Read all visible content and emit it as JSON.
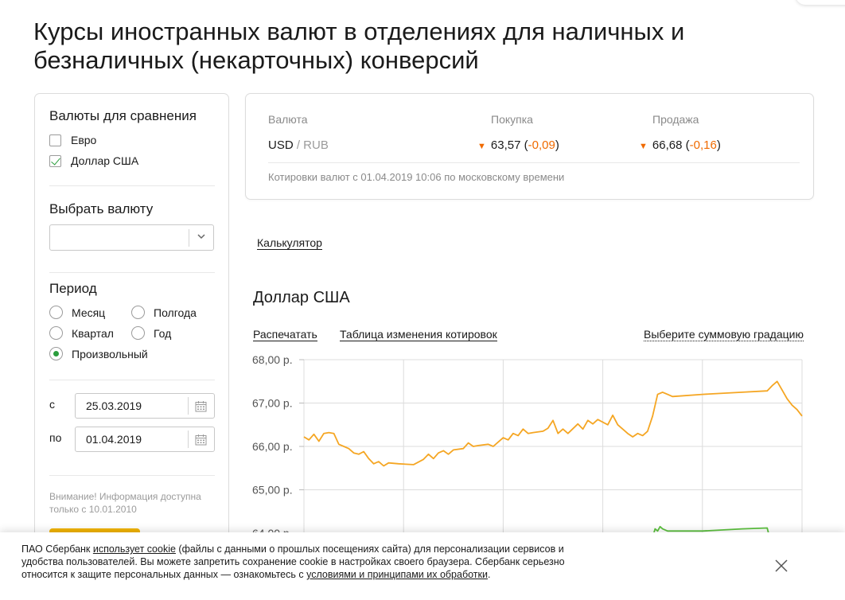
{
  "page_title": "Курсы иностранных валют в отделениях для наличных и безналичных (некарточных) конверсий",
  "sidebar": {
    "compare_title": "Валюты для сравнения",
    "compare_items": [
      {
        "label": "Евро",
        "checked": false
      },
      {
        "label": "Доллар США",
        "checked": true
      }
    ],
    "select_title": "Выбрать валюту",
    "select_value": "",
    "period_title": "Период",
    "period_options": [
      {
        "label": "Месяц",
        "selected": false
      },
      {
        "label": "Полгода",
        "selected": false
      },
      {
        "label": "Квартал",
        "selected": false
      },
      {
        "label": "Год",
        "selected": false
      },
      {
        "label": "Произвольный",
        "selected": true
      }
    ],
    "from_label": "с",
    "from_date": "25.03.2019",
    "to_label": "по",
    "to_date": "01.04.2019",
    "note": "Внимание! Информация доступна только с 10.01.2010"
  },
  "rates": {
    "col_currency": "Валюта",
    "col_buy": "Покупка",
    "col_sell": "Продажа",
    "currency": "USD",
    "base": "/ RUB",
    "buy_value": "63,57",
    "buy_change": "-0,09",
    "sell_value": "66,68",
    "sell_change": "-0,16",
    "note": "Котировки валют с 01.04.2019 10:06 по московскому времени",
    "down_color": "#f06a00"
  },
  "links": {
    "calculator": "Калькулятор",
    "print": "Распечатать",
    "table": "Таблица изменения котировок",
    "gradation": "Выберите суммовую градацию"
  },
  "chart_title": "Доллар США",
  "chart_data": {
    "type": "line",
    "title": "Доллар США",
    "ylim": [
      63.8,
      68.0
    ],
    "y_ticks": [
      "68,00 р.",
      "67,00 р.",
      "66,00 р.",
      "65,00 р.",
      "64,00 р."
    ],
    "y_tick_values": [
      68,
      67,
      66,
      65,
      64
    ],
    "x_range": [
      0,
      100
    ],
    "grid": true,
    "series": [
      {
        "color": "#f5a623",
        "points": [
          [
            0,
            66.22
          ],
          [
            1,
            66.15
          ],
          [
            2,
            66.28
          ],
          [
            3,
            66.12
          ],
          [
            4,
            66.3
          ],
          [
            5,
            66.32
          ],
          [
            6,
            66.3
          ],
          [
            7,
            66.05
          ],
          [
            8,
            66.0
          ],
          [
            9,
            65.95
          ],
          [
            10,
            65.85
          ],
          [
            11,
            65.82
          ],
          [
            12,
            65.88
          ],
          [
            13,
            65.72
          ],
          [
            14,
            65.6
          ],
          [
            15,
            65.65
          ],
          [
            16,
            65.55
          ],
          [
            17,
            65.62
          ],
          [
            19,
            65.6
          ],
          [
            22,
            65.58
          ],
          [
            24,
            65.7
          ],
          [
            25,
            65.82
          ],
          [
            26,
            65.72
          ],
          [
            27,
            65.85
          ],
          [
            28,
            65.9
          ],
          [
            29,
            65.82
          ],
          [
            30,
            65.92
          ],
          [
            32,
            65.95
          ],
          [
            33,
            66.08
          ],
          [
            34,
            66.0
          ],
          [
            35,
            66.02
          ],
          [
            37,
            66.05
          ],
          [
            38,
            66.0
          ],
          [
            39,
            66.1
          ],
          [
            40,
            66.2
          ],
          [
            41,
            66.15
          ],
          [
            42,
            66.3
          ],
          [
            43,
            66.25
          ],
          [
            44,
            66.4
          ],
          [
            45,
            66.3
          ],
          [
            46,
            66.32
          ],
          [
            48,
            66.35
          ],
          [
            49,
            66.42
          ],
          [
            50,
            66.6
          ],
          [
            51,
            66.3
          ],
          [
            52,
            66.4
          ],
          [
            53,
            66.3
          ],
          [
            55,
            66.52
          ],
          [
            56,
            66.4
          ],
          [
            57,
            66.6
          ],
          [
            58,
            66.52
          ],
          [
            59,
            66.62
          ],
          [
            61,
            66.5
          ],
          [
            62,
            66.72
          ],
          [
            63,
            66.5
          ],
          [
            64,
            66.4
          ],
          [
            65,
            66.3
          ],
          [
            66,
            66.22
          ],
          [
            67,
            66.3
          ],
          [
            68,
            66.25
          ],
          [
            69,
            66.35
          ],
          [
            70,
            66.7
          ],
          [
            71,
            67.2
          ],
          [
            72,
            67.25
          ],
          [
            73,
            67.2
          ],
          [
            74,
            67.15
          ],
          [
            80,
            67.2
          ],
          [
            88,
            67.25
          ],
          [
            93,
            67.28
          ],
          [
            94,
            67.4
          ],
          [
            95,
            67.5
          ],
          [
            96,
            67.3
          ],
          [
            97,
            67.1
          ],
          [
            98,
            66.95
          ],
          [
            99,
            66.85
          ],
          [
            100,
            66.7
          ]
        ]
      },
      {
        "color": "#5cc13f",
        "points": [
          [
            70,
            63.9
          ],
          [
            70.5,
            64.1
          ],
          [
            71,
            64.05
          ],
          [
            71.5,
            64.15
          ],
          [
            72,
            64.1
          ],
          [
            73,
            64.05
          ],
          [
            80,
            64.05
          ],
          [
            88,
            64.1
          ],
          [
            93,
            64.12
          ],
          [
            93.5,
            63.9
          ]
        ]
      }
    ]
  },
  "cookie": {
    "t1": "ПАО Сбербанк ",
    "t2": "использует cookie",
    "t3": " (файлы с данными о прошлых посещениях сайта) для персонализации сервисов и удобства пользователей. Вы можете запретить сохранение cookie в настройках своего браузера. Сбербанк серьезно относится к защите персональных данных — ознакомьтесь с ",
    "t4": "условиями и принципами их обработки",
    "t5": "."
  }
}
